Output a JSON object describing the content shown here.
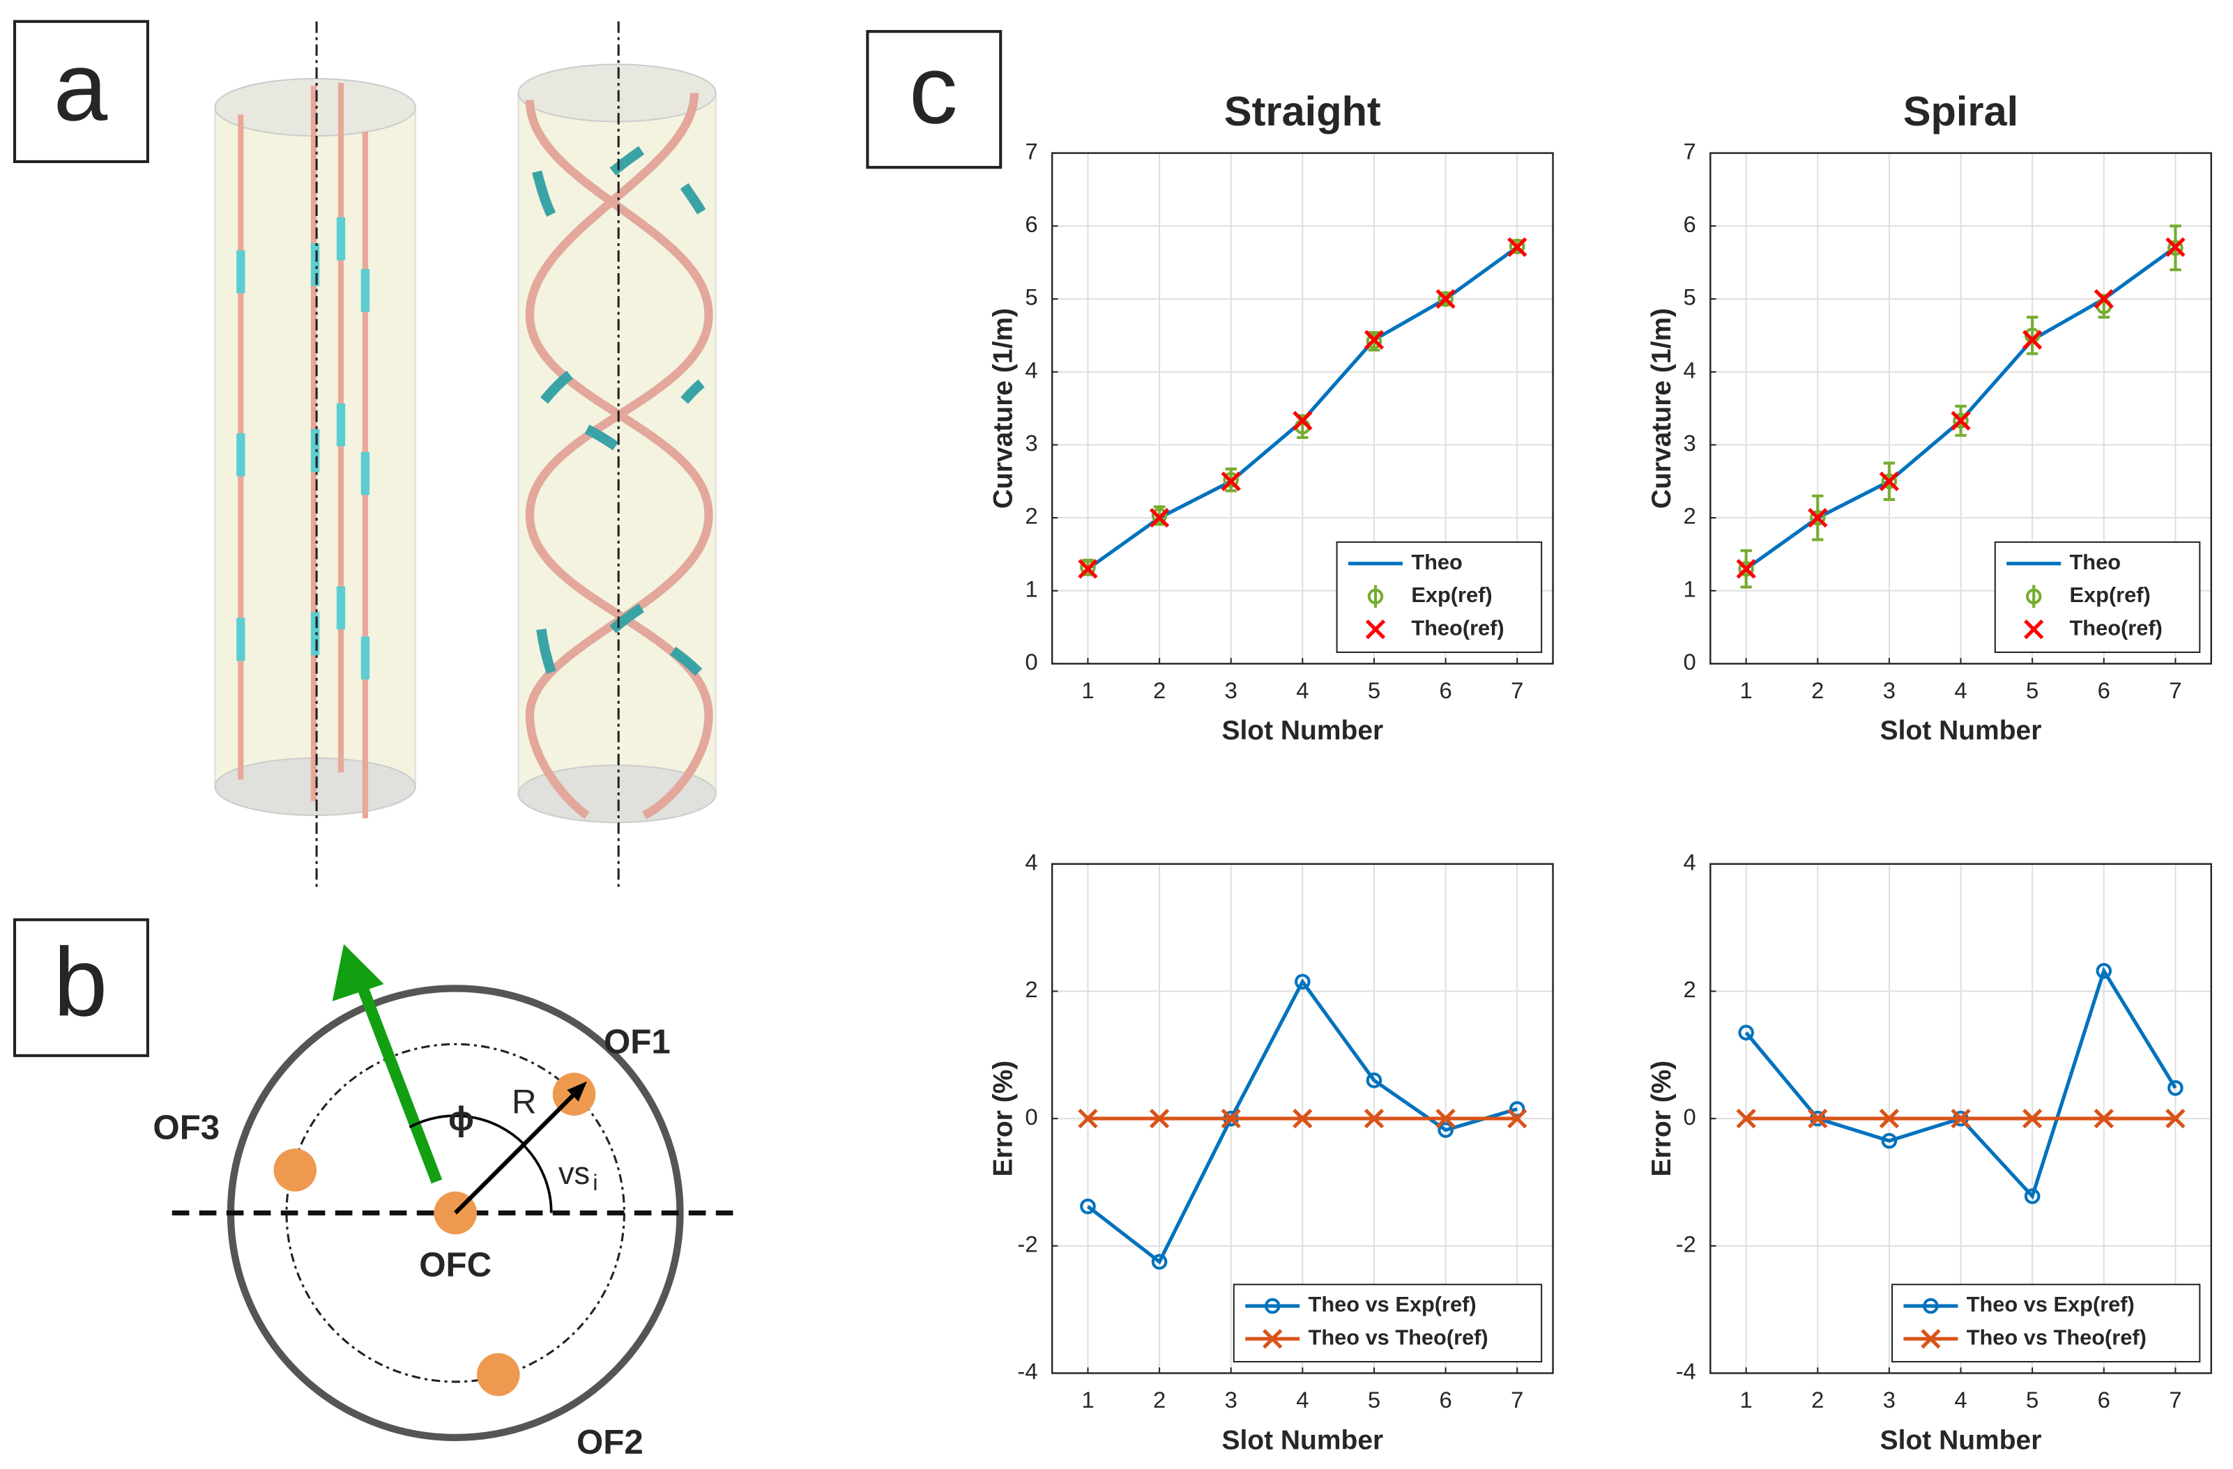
{
  "panels": [
    "a",
    "b",
    "c"
  ],
  "diagram": {
    "of1": "OF1",
    "of2": "OF2",
    "of3": "OF3",
    "ofc": "OFC",
    "r": "R",
    "phi": "ϕ",
    "vs": "vs",
    "vs_sub": "i"
  },
  "chart_data": [
    {
      "type": "line",
      "title": "Straight",
      "xlabel": "Slot Number",
      "ylabel": "Curvature (1/m)",
      "x": [
        1,
        2,
        3,
        4,
        5,
        6,
        7
      ],
      "xlim": [
        0.5,
        7.5
      ],
      "xticks": [
        1,
        2,
        3,
        4,
        5,
        6,
        7
      ],
      "ylim": [
        0,
        7
      ],
      "yticks": [
        0,
        1,
        2,
        3,
        4,
        5,
        6,
        7
      ],
      "grid": true,
      "legend": "lower right",
      "series": [
        {
          "name": "Theo",
          "color": "#0072bd",
          "line": true,
          "values": [
            1.3,
            2.0,
            2.5,
            3.33,
            4.44,
            5.0,
            5.71
          ]
        },
        {
          "name": "Exp(ref)",
          "color": "#77ac30",
          "line": false,
          "marker": "o",
          "values": [
            1.32,
            2.03,
            2.52,
            3.25,
            4.42,
            5.0,
            5.72
          ],
          "errors": [
            0.1,
            0.12,
            0.15,
            0.15,
            0.12,
            0.08,
            0.08
          ]
        },
        {
          "name": "Theo(ref)",
          "color": "#ff0000",
          "line": false,
          "marker": "x",
          "values": [
            1.3,
            2.0,
            2.5,
            3.33,
            4.44,
            5.0,
            5.71
          ]
        }
      ]
    },
    {
      "type": "line",
      "title": "Spiral",
      "xlabel": "Slot Number",
      "ylabel": "Curvature (1/m)",
      "x": [
        1,
        2,
        3,
        4,
        5,
        6,
        7
      ],
      "xlim": [
        0.5,
        7.5
      ],
      "xticks": [
        1,
        2,
        3,
        4,
        5,
        6,
        7
      ],
      "ylim": [
        0,
        7
      ],
      "yticks": [
        0,
        1,
        2,
        3,
        4,
        5,
        6,
        7
      ],
      "grid": true,
      "legend": "lower right",
      "series": [
        {
          "name": "Theo",
          "color": "#0072bd",
          "line": true,
          "values": [
            1.3,
            2.0,
            2.5,
            3.33,
            4.44,
            5.0,
            5.71
          ]
        },
        {
          "name": "Exp(ref)",
          "color": "#77ac30",
          "line": false,
          "marker": "o",
          "values": [
            1.3,
            2.0,
            2.5,
            3.33,
            4.5,
            4.9,
            5.7
          ],
          "errors": [
            0.25,
            0.3,
            0.25,
            0.2,
            0.25,
            0.15,
            0.3
          ]
        },
        {
          "name": "Theo(ref)",
          "color": "#ff0000",
          "line": false,
          "marker": "x",
          "values": [
            1.3,
            2.0,
            2.5,
            3.33,
            4.44,
            5.0,
            5.71
          ]
        }
      ]
    },
    {
      "type": "line",
      "xlabel": "Slot Number",
      "ylabel": "Error (%)",
      "x": [
        1,
        2,
        3,
        4,
        5,
        6,
        7
      ],
      "xlim": [
        0.5,
        7.5
      ],
      "xticks": [
        1,
        2,
        3,
        4,
        5,
        6,
        7
      ],
      "ylim": [
        -4,
        4
      ],
      "yticks": [
        -4,
        -2,
        0,
        2,
        4
      ],
      "grid": true,
      "legend": "lower right",
      "series": [
        {
          "name": "Theo vs Exp(ref)",
          "color": "#0072bd",
          "line": true,
          "marker": "o",
          "values": [
            -1.38,
            -2.25,
            0,
            2.15,
            0.6,
            -0.18,
            0.15
          ]
        },
        {
          "name": "Theo vs Theo(ref)",
          "color": "#d95319",
          "line": true,
          "marker": "x",
          "values": [
            0,
            0,
            0,
            0,
            0,
            0,
            0
          ]
        }
      ]
    },
    {
      "type": "line",
      "xlabel": "Slot Number",
      "ylabel": "Error (%)",
      "x": [
        1,
        2,
        3,
        4,
        5,
        6,
        7
      ],
      "xlim": [
        0.5,
        7.5
      ],
      "xticks": [
        1,
        2,
        3,
        4,
        5,
        6,
        7
      ],
      "ylim": [
        -4,
        4
      ],
      "yticks": [
        -4,
        -2,
        0,
        2,
        4
      ],
      "grid": true,
      "legend": "lower right",
      "series": [
        {
          "name": "Theo vs Exp(ref)",
          "color": "#0072bd",
          "line": true,
          "marker": "o",
          "values": [
            1.35,
            0,
            -0.35,
            0,
            -1.22,
            2.32,
            0.48
          ]
        },
        {
          "name": "Theo vs Theo(ref)",
          "color": "#d95319",
          "line": true,
          "marker": "x",
          "values": [
            0,
            0,
            0,
            0,
            0,
            0,
            0
          ]
        }
      ]
    }
  ]
}
